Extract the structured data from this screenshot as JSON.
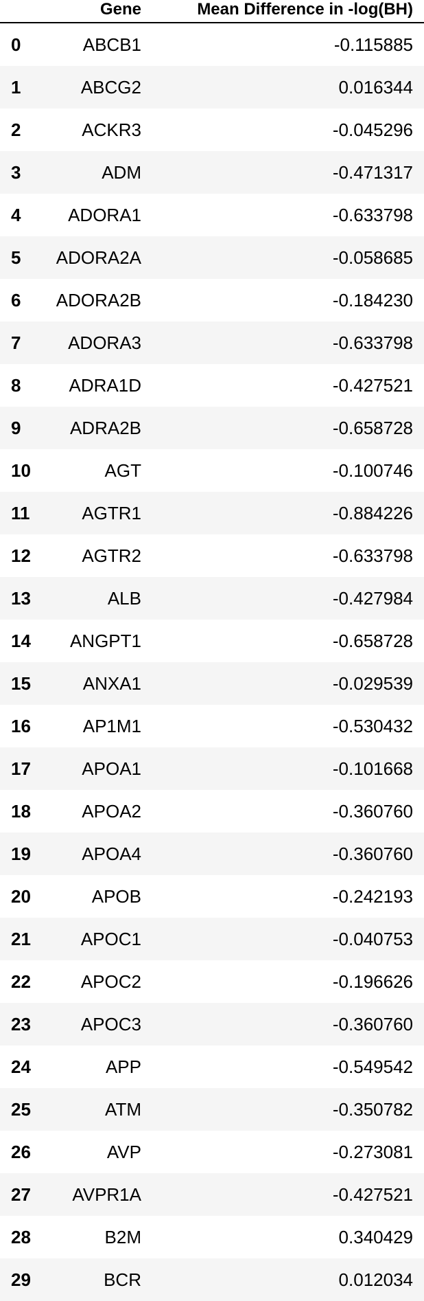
{
  "table": {
    "columns": {
      "index": "",
      "gene": "Gene",
      "value": "Mean Difference in -log(BH)"
    },
    "rows": [
      {
        "index": "0",
        "gene": "ABCB1",
        "value": "-0.115885"
      },
      {
        "index": "1",
        "gene": "ABCG2",
        "value": "0.016344"
      },
      {
        "index": "2",
        "gene": "ACKR3",
        "value": "-0.045296"
      },
      {
        "index": "3",
        "gene": "ADM",
        "value": "-0.471317"
      },
      {
        "index": "4",
        "gene": "ADORA1",
        "value": "-0.633798"
      },
      {
        "index": "5",
        "gene": "ADORA2A",
        "value": "-0.058685"
      },
      {
        "index": "6",
        "gene": "ADORA2B",
        "value": "-0.184230"
      },
      {
        "index": "7",
        "gene": "ADORA3",
        "value": "-0.633798"
      },
      {
        "index": "8",
        "gene": "ADRA1D",
        "value": "-0.427521"
      },
      {
        "index": "9",
        "gene": "ADRA2B",
        "value": "-0.658728"
      },
      {
        "index": "10",
        "gene": "AGT",
        "value": "-0.100746"
      },
      {
        "index": "11",
        "gene": "AGTR1",
        "value": "-0.884226"
      },
      {
        "index": "12",
        "gene": "AGTR2",
        "value": "-0.633798"
      },
      {
        "index": "13",
        "gene": "ALB",
        "value": "-0.427984"
      },
      {
        "index": "14",
        "gene": "ANGPT1",
        "value": "-0.658728"
      },
      {
        "index": "15",
        "gene": "ANXA1",
        "value": "-0.029539"
      },
      {
        "index": "16",
        "gene": "AP1M1",
        "value": "-0.530432"
      },
      {
        "index": "17",
        "gene": "APOA1",
        "value": "-0.101668"
      },
      {
        "index": "18",
        "gene": "APOA2",
        "value": "-0.360760"
      },
      {
        "index": "19",
        "gene": "APOA4",
        "value": "-0.360760"
      },
      {
        "index": "20",
        "gene": "APOB",
        "value": "-0.242193"
      },
      {
        "index": "21",
        "gene": "APOC1",
        "value": "-0.040753"
      },
      {
        "index": "22",
        "gene": "APOC2",
        "value": "-0.196626"
      },
      {
        "index": "23",
        "gene": "APOC3",
        "value": "-0.360760"
      },
      {
        "index": "24",
        "gene": "APP",
        "value": "-0.549542"
      },
      {
        "index": "25",
        "gene": "ATM",
        "value": "-0.350782"
      },
      {
        "index": "26",
        "gene": "AVP",
        "value": "-0.273081"
      },
      {
        "index": "27",
        "gene": "AVPR1A",
        "value": "-0.427521"
      },
      {
        "index": "28",
        "gene": "B2M",
        "value": "0.340429"
      },
      {
        "index": "29",
        "gene": "BCR",
        "value": "0.012034"
      }
    ]
  }
}
